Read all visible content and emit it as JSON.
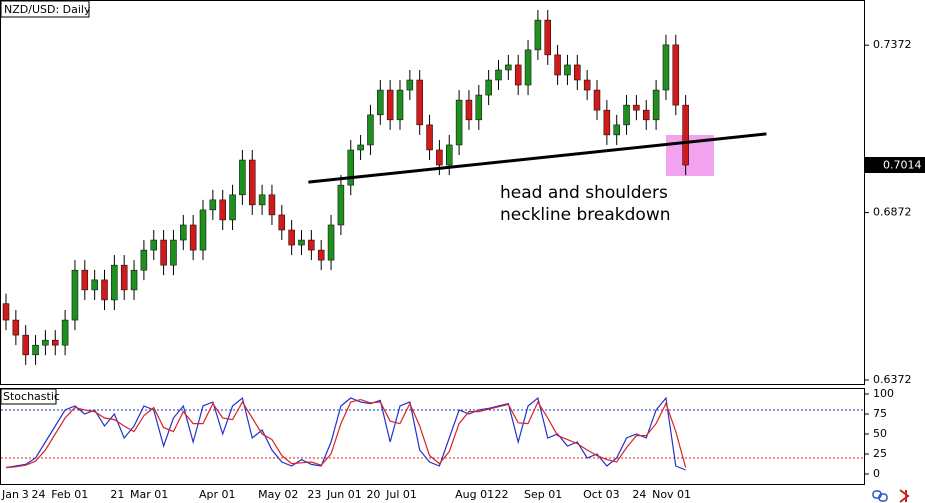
{
  "chart_data": [
    {
      "type": "candlestick",
      "title": "NZD/USD: Daily",
      "categories": [
        "Jan",
        null,
        "3",
        "24",
        null,
        "Feb 01",
        null,
        null,
        null,
        null,
        null,
        "21",
        null,
        "Mar 01",
        null,
        null,
        null,
        null,
        null,
        null,
        "Apr 01",
        null,
        null,
        null,
        null,
        null,
        "May 02",
        null,
        null,
        null,
        null,
        "23",
        null,
        "Jun 01",
        null,
        null,
        null,
        "20",
        null,
        "Jul 01",
        null,
        null,
        null,
        null,
        null,
        null,
        "Aug 01",
        null,
        null,
        null,
        "22",
        null,
        null,
        "Sep 01",
        null,
        null,
        null,
        null,
        null,
        "Oct 03",
        null,
        null,
        null,
        null,
        "24",
        null,
        "Nov 01",
        null,
        null,
        null
      ],
      "open": [
        0.66,
        0.6551,
        0.6506,
        0.6447,
        0.6476,
        0.6491,
        0.6476,
        0.6551,
        0.67,
        0.6641,
        0.6671,
        0.6611,
        0.6715,
        0.6641,
        0.67,
        0.676,
        0.679,
        0.6715,
        0.679,
        0.6835,
        0.676,
        0.688,
        0.691,
        0.685,
        0.6925,
        0.7029,
        0.6895,
        0.6925,
        0.6865,
        0.682,
        0.6775,
        0.679,
        0.676,
        0.673,
        0.6835,
        0.6954,
        0.7059,
        0.7074,
        0.7164,
        0.7238,
        0.7149,
        0.7238,
        0.7268,
        0.7134,
        0.7059,
        0.7014,
        0.7074,
        0.7208,
        0.7149,
        0.7223,
        0.7268,
        0.7298,
        0.7313,
        0.7253,
        0.7358,
        0.7447,
        0.7343,
        0.7283,
        0.7313,
        0.7268,
        0.7238,
        0.7178,
        0.7104,
        0.7134,
        0.7193,
        0.7178,
        0.7149,
        0.7238,
        0.7373,
        0.7193
      ],
      "high": [
        0.663,
        0.6581,
        0.6536,
        0.6506,
        0.6521,
        0.6521,
        0.6581,
        0.673,
        0.673,
        0.6701,
        0.6701,
        0.6745,
        0.6745,
        0.673,
        0.679,
        0.682,
        0.682,
        0.682,
        0.6865,
        0.6865,
        0.691,
        0.694,
        0.694,
        0.6955,
        0.7059,
        0.7059,
        0.6955,
        0.6955,
        0.6895,
        0.685,
        0.682,
        0.682,
        0.679,
        0.6865,
        0.6984,
        0.7089,
        0.7104,
        0.7194,
        0.7268,
        0.7268,
        0.7268,
        0.7298,
        0.7298,
        0.7164,
        0.7089,
        0.7104,
        0.7238,
        0.7238,
        0.7253,
        0.7298,
        0.7328,
        0.7343,
        0.7343,
        0.7388,
        0.7477,
        0.7477,
        0.7373,
        0.7343,
        0.7343,
        0.7298,
        0.7268,
        0.7208,
        0.7164,
        0.7223,
        0.7223,
        0.7208,
        0.7268,
        0.7403,
        0.7403,
        0.7223
      ],
      "low": [
        0.6521,
        0.6476,
        0.6417,
        0.6417,
        0.6446,
        0.6446,
        0.6446,
        0.6521,
        0.6611,
        0.6611,
        0.6581,
        0.6581,
        0.6611,
        0.6611,
        0.667,
        0.673,
        0.6685,
        0.6685,
        0.676,
        0.673,
        0.673,
        0.685,
        0.682,
        0.682,
        0.6895,
        0.6865,
        0.6865,
        0.6835,
        0.679,
        0.6745,
        0.6745,
        0.673,
        0.67,
        0.67,
        0.6805,
        0.6924,
        0.7029,
        0.7044,
        0.7134,
        0.7119,
        0.7119,
        0.7208,
        0.7104,
        0.7029,
        0.6984,
        0.6984,
        0.7044,
        0.7119,
        0.7119,
        0.7193,
        0.7238,
        0.7268,
        0.7223,
        0.7223,
        0.7328,
        0.7313,
        0.7253,
        0.7253,
        0.7238,
        0.7208,
        0.7148,
        0.7074,
        0.7074,
        0.7104,
        0.7148,
        0.7119,
        0.7119,
        0.7208,
        0.7163,
        0.6984
      ],
      "close": [
        0.6551,
        0.6506,
        0.6447,
        0.6476,
        0.6491,
        0.6476,
        0.6551,
        0.67,
        0.6641,
        0.6671,
        0.6611,
        0.6715,
        0.6641,
        0.67,
        0.676,
        0.679,
        0.6715,
        0.679,
        0.6835,
        0.676,
        0.688,
        0.691,
        0.685,
        0.6925,
        0.7029,
        0.6895,
        0.6925,
        0.6865,
        0.682,
        0.6775,
        0.679,
        0.676,
        0.673,
        0.6835,
        0.6954,
        0.7059,
        0.7074,
        0.7164,
        0.7238,
        0.7149,
        0.7238,
        0.7268,
        0.7134,
        0.7059,
        0.7014,
        0.7074,
        0.7208,
        0.7149,
        0.7223,
        0.7268,
        0.7298,
        0.7313,
        0.7253,
        0.7358,
        0.7447,
        0.7343,
        0.7283,
        0.7313,
        0.7268,
        0.7238,
        0.7178,
        0.7104,
        0.7134,
        0.7193,
        0.7178,
        0.7149,
        0.7238,
        0.7373,
        0.7193,
        0.7014
      ],
      "up_color": "#1f8f1f",
      "down_color": "#d11a1a",
      "wick_color": "#000000",
      "ylim": [
        0.6357,
        0.7507
      ],
      "yticks": [
        0.6372,
        0.6872,
        0.7372
      ],
      "last_price": 0.7014,
      "neckline": {
        "x": [
          30.7,
          77.2
        ],
        "values": [
          0.6963,
          0.7107
        ]
      },
      "annotation": [
        "head and shoulders",
        "neckline breakdown"
      ]
    },
    {
      "type": "line",
      "title": "Stochastic",
      "series": [
        {
          "color": "#2233cc",
          "values": [
            8,
            10,
            12,
            20,
            40,
            60,
            80,
            85,
            75,
            80,
            60,
            75,
            45,
            60,
            85,
            80,
            35,
            70,
            85,
            40,
            85,
            90,
            50,
            85,
            95,
            45,
            55,
            30,
            15,
            10,
            18,
            12,
            10,
            40,
            85,
            95,
            90,
            88,
            92,
            40,
            85,
            90,
            30,
            15,
            10,
            45,
            80,
            75,
            80,
            82,
            85,
            88,
            40,
            85,
            95,
            45,
            50,
            35,
            40,
            20,
            25,
            10,
            20,
            45,
            50,
            45,
            80,
            95,
            10,
            5
          ]
        },
        {
          "color": "#dd2222",
          "values": [
            8,
            9,
            11,
            16,
            30,
            50,
            70,
            83,
            80,
            78,
            70,
            68,
            60,
            53,
            73,
            83,
            58,
            53,
            78,
            63,
            63,
            88,
            70,
            68,
            90,
            70,
            50,
            43,
            23,
            13,
            14,
            15,
            11,
            25,
            63,
            90,
            93,
            89,
            90,
            66,
            63,
            88,
            60,
            23,
            13,
            28,
            63,
            78,
            78,
            81,
            84,
            87,
            64,
            63,
            90,
            70,
            48,
            43,
            38,
            30,
            23,
            18,
            15,
            33,
            48,
            48,
            63,
            88,
            53,
            8
          ]
        }
      ],
      "levels": [
        {
          "value": 80,
          "color": "#2233cc"
        },
        {
          "value": 20,
          "color": "#dd2222"
        }
      ],
      "ylim": [
        -12.5,
        107.5
      ],
      "yticks": [
        0,
        25,
        50,
        75,
        100
      ]
    }
  ]
}
